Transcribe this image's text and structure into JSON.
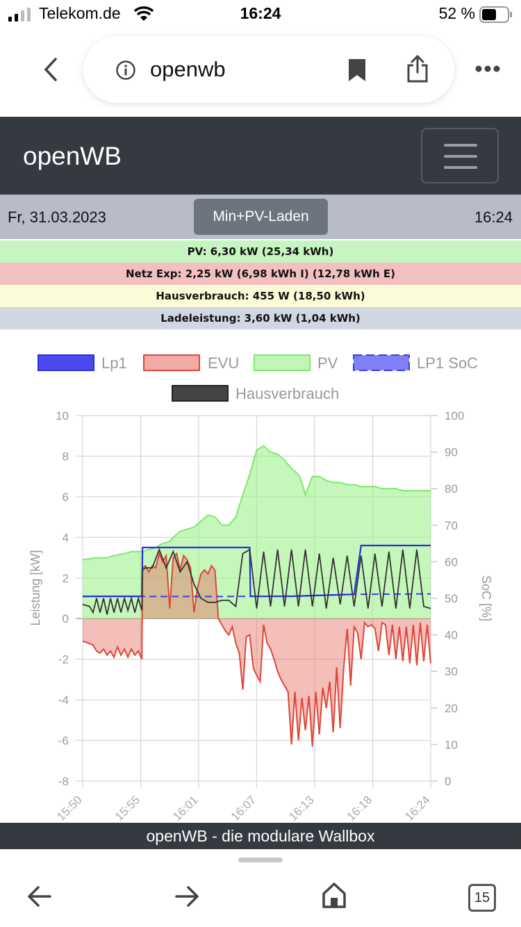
{
  "status_bar": {
    "carrier": "Telekom.de",
    "time": "16:24",
    "battery": "52 %"
  },
  "browser": {
    "url": "openwb",
    "tab_count": "15"
  },
  "navbar": {
    "brand": "openWB"
  },
  "info": {
    "date": "Fr, 31.03.2023",
    "mode_button": "Min+PV-Laden",
    "clock": "16:24"
  },
  "stats": [
    {
      "text": "PV: 6,30 kW (25,34 kWh)",
      "color": "#c6f5c1"
    },
    {
      "text": "Netz Exp: 2,25 kW (6,98 kWh I) (12,78 kWh E)",
      "color": "#f2c0be"
    },
    {
      "text": "Hausverbrauch: 455 W (18,50 kWh)",
      "color": "#fcfbd8"
    },
    {
      "text": "Ladeleistung: 3,60 kW (1,04 kWh)",
      "color": "#d2d6e2"
    }
  ],
  "chart_data": {
    "type": "line",
    "legend": [
      "Lp1",
      "EVU",
      "PV",
      "LP1 SoC",
      "Hausverbrauch"
    ],
    "ylabel_left": "Leistung [kW]",
    "ylabel_right": "SoC [%]",
    "ylim_left": [
      -8,
      10
    ],
    "ylim_right": [
      0,
      100
    ],
    "yticks_left": [
      "10",
      "8",
      "6",
      "4",
      "2",
      "0",
      "-2",
      "-4",
      "-6",
      "-8"
    ],
    "yticks_right": [
      "100",
      "90",
      "80",
      "70",
      "60",
      "50",
      "40",
      "30",
      "20",
      "10",
      "0"
    ],
    "xticks": [
      "15:50",
      "15:55",
      "16:01",
      "16:07",
      "16:13",
      "16:18",
      "16:24"
    ],
    "grid": true,
    "legend_position": "top",
    "colors": {
      "lp1": "#2b2ee0",
      "evu": "#e0453a",
      "pv": "#7ee86e",
      "soc": "#3c3cf0",
      "haus": "#333333"
    },
    "series": [
      {
        "name": "PV",
        "x": [
          0,
          4,
          7,
          9,
          12,
          14,
          17,
          19,
          21,
          23,
          25,
          26,
          28,
          30,
          32,
          34,
          36,
          38,
          40,
          42,
          44,
          46,
          48,
          50,
          52,
          54,
          56,
          58,
          60,
          62,
          63,
          64,
          66,
          68,
          70,
          72,
          74,
          76,
          78,
          80,
          82,
          84,
          86,
          88,
          90,
          92,
          94,
          96,
          98,
          100
        ],
        "values": [
          2.9,
          3.0,
          3.0,
          3.1,
          3.2,
          3.3,
          3.3,
          3.4,
          3.5,
          3.7,
          3.8,
          4.0,
          4.3,
          4.4,
          4.5,
          4.8,
          5.1,
          5.0,
          4.6,
          4.6,
          5.0,
          6.1,
          7.1,
          8.3,
          8.5,
          8.2,
          8.1,
          7.8,
          7.4,
          7.1,
          6.7,
          6.1,
          7.0,
          7.0,
          6.8,
          6.7,
          6.7,
          6.6,
          6.6,
          6.5,
          6.5,
          6.5,
          6.4,
          6.4,
          6.4,
          6.3,
          6.3,
          6.3,
          6.3,
          6.3
        ]
      },
      {
        "name": "EVU",
        "x": [
          0,
          3,
          4,
          5,
          6,
          7,
          8,
          9,
          10,
          11,
          12,
          13,
          14,
          15,
          16,
          17,
          17.2,
          18,
          19,
          20,
          21,
          22,
          23,
          24,
          25,
          26,
          27,
          28,
          29,
          30,
          31,
          32,
          33,
          34,
          35,
          36,
          37,
          38,
          39,
          40,
          41,
          42,
          43,
          44,
          45,
          46,
          47,
          48,
          49,
          50,
          51,
          52,
          53,
          54,
          55,
          56,
          57,
          58,
          59,
          60,
          61,
          62,
          63,
          64,
          65,
          66,
          67,
          68,
          69,
          70,
          71,
          72,
          73,
          74,
          75,
          76,
          77,
          78,
          79,
          80,
          81,
          82,
          83,
          84,
          85,
          86,
          87,
          88,
          89,
          90,
          91,
          92,
          93,
          94,
          95,
          96,
          97,
          98,
          99,
          100
        ],
        "values": [
          -1.1,
          -1.3,
          -1.6,
          -1.7,
          -1.5,
          -1.8,
          -1.6,
          -1.9,
          -1.4,
          -1.8,
          -1.5,
          -1.9,
          -1.5,
          -1.8,
          -1.6,
          -2.0,
          2.5,
          2.6,
          2.3,
          2.6,
          2.5,
          3.2,
          2.8,
          3.1,
          0.5,
          3.0,
          3.2,
          2.4,
          3.1,
          2.9,
          2.5,
          0.3,
          1.5,
          2.2,
          2.4,
          2.2,
          2.6,
          2.4,
          0.0,
          -0.3,
          -0.6,
          -0.8,
          -0.4,
          -1.2,
          -1.7,
          -3.5,
          -0.9,
          -0.8,
          -2.4,
          -2.8,
          -3.1,
          -0.3,
          -1.2,
          -1.5,
          -2.0,
          -2.6,
          -3.0,
          -3.3,
          -3.6,
          -6.2,
          -3.6,
          -6.0,
          -3.9,
          -5.5,
          -3.8,
          -6.3,
          -3.6,
          -5.7,
          -3.4,
          -4.4,
          -3.1,
          -5.6,
          -2.4,
          -5.4,
          -2.4,
          -0.5,
          -3.3,
          -0.4,
          -0.7,
          -2.0,
          -0.2,
          -0.4,
          -0.3,
          -0.5,
          -1.6,
          -0.2,
          -0.3,
          -1.8,
          -0.3,
          -2.0,
          -0.4,
          -2.1,
          -0.4,
          -2.2,
          -0.3,
          -2.3,
          -0.2,
          -2.1,
          -0.3,
          -2.2
        ]
      },
      {
        "name": "Lp1",
        "x": [
          0,
          17,
          17.2,
          30,
          48,
          48.2,
          60,
          78,
          80,
          88,
          95,
          100
        ],
        "values": [
          1.1,
          1.1,
          3.5,
          3.5,
          3.5,
          1.1,
          1.1,
          1.2,
          3.6,
          3.6,
          3.6,
          3.6
        ]
      },
      {
        "name": "LP1 SoC",
        "x": [
          0,
          20,
          40,
          60,
          80,
          100
        ],
        "values": [
          50.5,
          50.5,
          50.5,
          50.6,
          51.1,
          51.2
        ]
      },
      {
        "name": "Hausverbrauch",
        "x": [
          0,
          2,
          3,
          4,
          5,
          6,
          7,
          8,
          9,
          10,
          11,
          12,
          13,
          14,
          15,
          16,
          17,
          17.2,
          18,
          20,
          22,
          24,
          26,
          28,
          30,
          32,
          34,
          36,
          38,
          40,
          42,
          44,
          46,
          48,
          50,
          52,
          54,
          56,
          58,
          60,
          62,
          64,
          66,
          68,
          70,
          72,
          74,
          76,
          78,
          80,
          82,
          84,
          86,
          88,
          90,
          92,
          94,
          96,
          98,
          100
        ],
        "values": [
          0.7,
          0.6,
          0.3,
          1.0,
          0.3,
          1.0,
          0.2,
          1.0,
          0.3,
          1.0,
          0.3,
          1.0,
          0.4,
          1.0,
          0.3,
          1.0,
          0.4,
          2.4,
          2.5,
          2.5,
          3.4,
          2.5,
          3.3,
          2.3,
          2.8,
          1.7,
          1.0,
          0.8,
          0.8,
          0.9,
          0.9,
          0.6,
          3.2,
          3.4,
          0.5,
          3.3,
          0.6,
          3.4,
          0.6,
          3.4,
          0.6,
          3.4,
          0.6,
          3.2,
          0.5,
          3.0,
          0.7,
          3.1,
          0.6,
          3.1,
          0.5,
          3.2,
          0.6,
          3.3,
          0.5,
          3.4,
          0.5,
          3.4,
          0.6,
          0.5
        ]
      }
    ]
  },
  "footer": {
    "text": "openWB - die modulare Wallbox"
  }
}
